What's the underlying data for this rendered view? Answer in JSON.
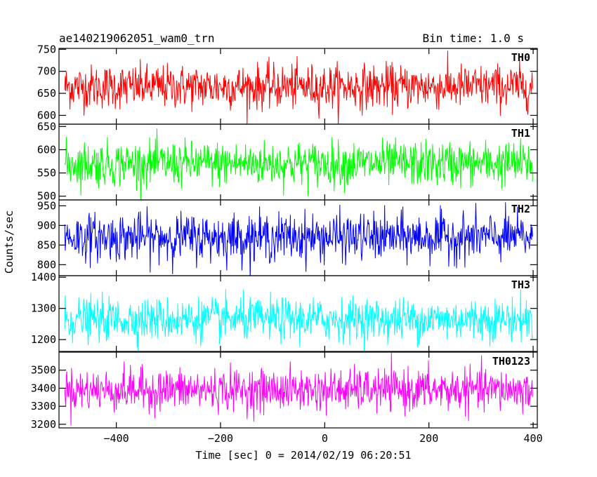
{
  "chart_data": {
    "type": "line",
    "title": "ae140219062051_wam0_trn",
    "bin_time": "Bin time: 1.0 s",
    "xlabel": "Time [sec] 0 = 2014/02/19 06:20:51",
    "ylabel": "Counts/sec",
    "xlim": [
      -510,
      408
    ],
    "xticks": [
      -400,
      -200,
      0,
      200,
      400
    ],
    "xtick_labels": [
      "−400",
      "−200",
      "0",
      "200",
      "400"
    ],
    "grid": false,
    "panels": [
      {
        "name": "TH0",
        "color": "#ff0000",
        "ylim": [
          580,
          752
        ],
        "yticks": [
          600,
          650,
          700,
          750
        ],
        "ytick_labels": [
          "600",
          "650",
          "700",
          "750"
        ],
        "mean": 665,
        "noise_sd": 25,
        "x_range": [
          -499,
          399
        ]
      },
      {
        "name": "TH1",
        "color": "#00ff00",
        "ylim": [
          492,
          655
        ],
        "yticks": [
          500,
          550,
          600,
          650
        ],
        "ytick_labels": [
          "500",
          "550",
          "600",
          "650"
        ],
        "mean": 570,
        "noise_sd": 24,
        "x_range": [
          -499,
          399
        ]
      },
      {
        "name": "TH2",
        "color": "#0000ff",
        "ylim": [
          772,
          965
        ],
        "yticks": [
          800,
          850,
          900,
          950
        ],
        "ytick_labels": [
          "800",
          "850",
          "900",
          "950"
        ],
        "mean": 870,
        "noise_sd": 30,
        "x_range": [
          -499,
          399
        ]
      },
      {
        "name": "TH3",
        "color": "#00ffff",
        "ylim": [
          1162,
          1405
        ],
        "yticks": [
          1200,
          1300,
          1400
        ],
        "ytick_labels": [
          "1200",
          "1300",
          "1400"
        ],
        "mean": 1265,
        "noise_sd": 34,
        "x_range": [
          -499,
          399
        ]
      },
      {
        "name": "TH0123",
        "color": "#ff00ff",
        "ylim": [
          3180,
          3600
        ],
        "yticks": [
          3200,
          3300,
          3400,
          3500
        ],
        "ytick_labels": [
          "3200",
          "3300",
          "3400",
          "3500"
        ],
        "mean": 3390,
        "noise_sd": 58,
        "x_range": [
          -499,
          399
        ]
      }
    ]
  }
}
